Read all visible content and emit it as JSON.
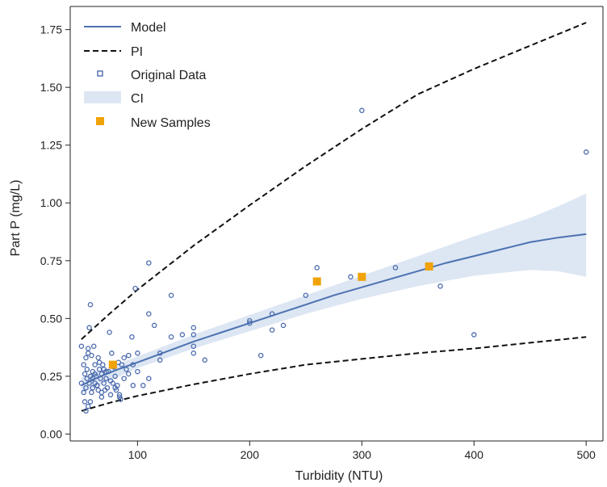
{
  "chart_data": {
    "type": "scatter",
    "xlabel": "Turbidity (NTU)",
    "ylabel": "Part P (mg/L)",
    "xlim": [
      40,
      515
    ],
    "ylim": [
      -0.03,
      1.85
    ],
    "xticks": [
      100,
      200,
      300,
      400,
      500
    ],
    "xtick_labels": [
      "100",
      "200",
      "300",
      "400",
      "500"
    ],
    "yticks": [
      0.0,
      0.25,
      0.5,
      0.75,
      1.0,
      1.25,
      1.5,
      1.75
    ],
    "ytick_labels": [
      "0.00",
      "0.25",
      "0.50",
      "0.75",
      "1.00",
      "1.25",
      "1.50",
      "1.75"
    ],
    "grid": false,
    "legend_position": "top-left",
    "legend": [
      {
        "key": "model",
        "label": "Model"
      },
      {
        "key": "pi",
        "label": "PI"
      },
      {
        "key": "original",
        "label": "Original Data"
      },
      {
        "key": "ci",
        "label": "CI"
      },
      {
        "key": "new",
        "label": "New Samples"
      }
    ],
    "colors": {
      "model": "#4c72b0",
      "pi": "#111111",
      "original": "#4c6bae",
      "ci": "#dde6f3",
      "new": "#f0a30a",
      "axes": "#222222"
    },
    "model": {
      "x": [
        50,
        60,
        70,
        80,
        100,
        125,
        150,
        175,
        200,
        225,
        250,
        275,
        300,
        325,
        350,
        375,
        400,
        425,
        450,
        475,
        500
      ],
      "y": [
        0.21,
        0.235,
        0.255,
        0.275,
        0.31,
        0.355,
        0.4,
        0.44,
        0.48,
        0.52,
        0.56,
        0.6,
        0.635,
        0.67,
        0.705,
        0.74,
        0.77,
        0.8,
        0.83,
        0.85,
        0.865
      ]
    },
    "ci": {
      "x": [
        50,
        100,
        150,
        200,
        250,
        300,
        350,
        400,
        450,
        475,
        500
      ],
      "lower": [
        0.175,
        0.285,
        0.37,
        0.445,
        0.52,
        0.585,
        0.64,
        0.685,
        0.71,
        0.705,
        0.68
      ],
      "upper": [
        0.245,
        0.335,
        0.43,
        0.515,
        0.6,
        0.685,
        0.77,
        0.855,
        0.935,
        0.985,
        1.04
      ]
    },
    "pi": {
      "x": [
        50,
        75,
        100,
        150,
        200,
        250,
        300,
        350,
        400,
        450,
        500
      ],
      "lower": [
        0.1,
        0.135,
        0.165,
        0.215,
        0.26,
        0.3,
        0.325,
        0.35,
        0.37,
        0.395,
        0.42
      ],
      "upper": [
        0.41,
        0.52,
        0.625,
        0.815,
        0.99,
        1.16,
        1.32,
        1.47,
        1.58,
        1.68,
        1.78
      ]
    },
    "original_data": {
      "x": [
        50,
        50,
        52,
        52,
        53,
        53,
        54,
        54,
        55,
        55,
        56,
        56,
        57,
        57,
        58,
        58,
        59,
        59,
        60,
        60,
        61,
        62,
        62,
        63,
        64,
        65,
        65,
        66,
        67,
        68,
        68,
        69,
        70,
        70,
        71,
        72,
        73,
        74,
        75,
        76,
        77,
        78,
        79,
        80,
        81,
        82,
        83,
        84,
        85,
        86,
        88,
        90,
        92,
        95,
        96,
        98,
        100,
        100,
        110,
        110,
        110,
        115,
        120,
        120,
        130,
        130,
        150,
        150,
        150,
        150,
        160,
        200,
        200,
        210,
        220,
        220,
        230,
        250,
        260,
        290,
        300,
        330,
        370,
        400,
        500,
        54,
        56,
        58,
        60,
        62,
        64,
        66,
        68,
        72,
        76,
        80,
        84,
        88,
        92,
        96,
        105,
        140
      ],
      "y": [
        0.38,
        0.22,
        0.3,
        0.18,
        0.26,
        0.14,
        0.33,
        0.2,
        0.24,
        0.28,
        0.37,
        0.12,
        0.46,
        0.22,
        0.56,
        0.25,
        0.34,
        0.18,
        0.27,
        0.2,
        0.38,
        0.3,
        0.22,
        0.25,
        0.21,
        0.33,
        0.19,
        0.28,
        0.24,
        0.26,
        0.16,
        0.3,
        0.22,
        0.28,
        0.19,
        0.24,
        0.2,
        0.27,
        0.44,
        0.17,
        0.35,
        0.22,
        0.29,
        0.25,
        0.19,
        0.21,
        0.31,
        0.16,
        0.15,
        0.3,
        0.24,
        0.28,
        0.34,
        0.42,
        0.21,
        0.63,
        0.35,
        0.27,
        0.74,
        0.52,
        0.24,
        0.47,
        0.35,
        0.32,
        0.6,
        0.42,
        0.46,
        0.43,
        0.38,
        0.35,
        0.32,
        0.49,
        0.48,
        0.34,
        0.52,
        0.45,
        0.47,
        0.6,
        0.72,
        0.68,
        1.4,
        0.72,
        0.64,
        0.43,
        1.22,
        0.1,
        0.35,
        0.14,
        0.24,
        0.26,
        0.21,
        0.31,
        0.18,
        0.27,
        0.23,
        0.2,
        0.17,
        0.33,
        0.26,
        0.3,
        0.21,
        0.43
      ],
      "label": "Original Data"
    },
    "new_samples": {
      "x": [
        78,
        260,
        300,
        360
      ],
      "y": [
        0.3,
        0.66,
        0.68,
        0.725
      ],
      "label": "New Samples"
    }
  }
}
